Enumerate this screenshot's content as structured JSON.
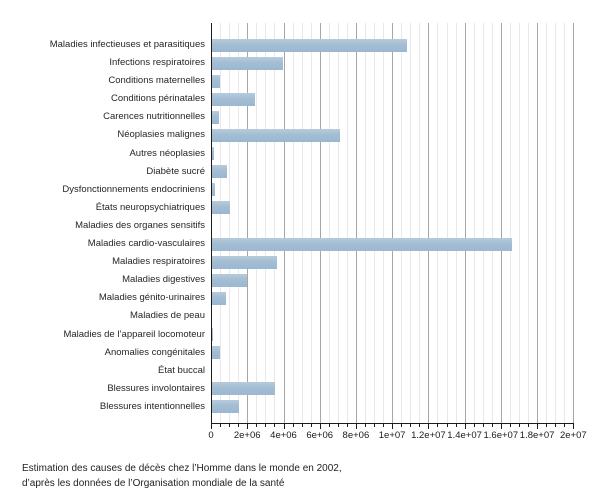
{
  "chart_data": {
    "type": "bar",
    "orientation": "horizontal",
    "title": "",
    "xlabel": "",
    "ylabel": "",
    "categories": [
      "Maladies infectieuses et parasitiques",
      "Infections respiratoires",
      "Conditions maternelles",
      "Conditions périnatales",
      "Carences nutritionnelles",
      "Néoplasies malignes",
      "Autres néoplasies",
      "Diabète sucré",
      "Dysfonctionnements endocriniens",
      "États neuropsychiatriques",
      "Maladies des organes sensitifs",
      "Maladies cardio-vasculaires",
      "Maladies respiratoires",
      "Maladies digestives",
      "Maladies génito-urinaires",
      "Maladies de peau",
      "Maladies de l’appareil locomoteur",
      "Anomalies congénitales",
      "État buccal",
      "Blessures involontaires",
      "Blessures intentionnelles"
    ],
    "values": [
      10800000,
      3950000,
      500000,
      2450000,
      450000,
      7100000,
      150000,
      900000,
      220000,
      1050000,
      20000,
      16600000,
      3650000,
      1970000,
      810000,
      70000,
      130000,
      500000,
      5000,
      3520000,
      1550000
    ],
    "xlim": [
      0,
      20000000
    ],
    "x_tick_interval_major": 2000000,
    "x_tick_interval_minor": 500000,
    "x_tick_labels": [
      "0",
      "2e+06",
      "4e+06",
      "6e+06",
      "8e+06",
      "1e+07",
      "1.2e+07",
      "1.4e+07",
      "1.6e+07",
      "1.8e+07",
      "2e+07"
    ],
    "grid": "vertical minor and major gridlines",
    "legend": "none",
    "bar_color": "#a3bdd4"
  },
  "caption": {
    "line1": "Estimation des causes de décès chez l’Homme dans le monde en 2002,",
    "line2": "d’après les données de l’Organisation mondiale de la santé"
  },
  "colors": {
    "bar": "#a3bdd4",
    "grid_major": "#a6a6a6",
    "grid_minor": "#e8e8ec",
    "axis": "#1c1c1c",
    "text": "#262626",
    "background": "#ffffff"
  }
}
